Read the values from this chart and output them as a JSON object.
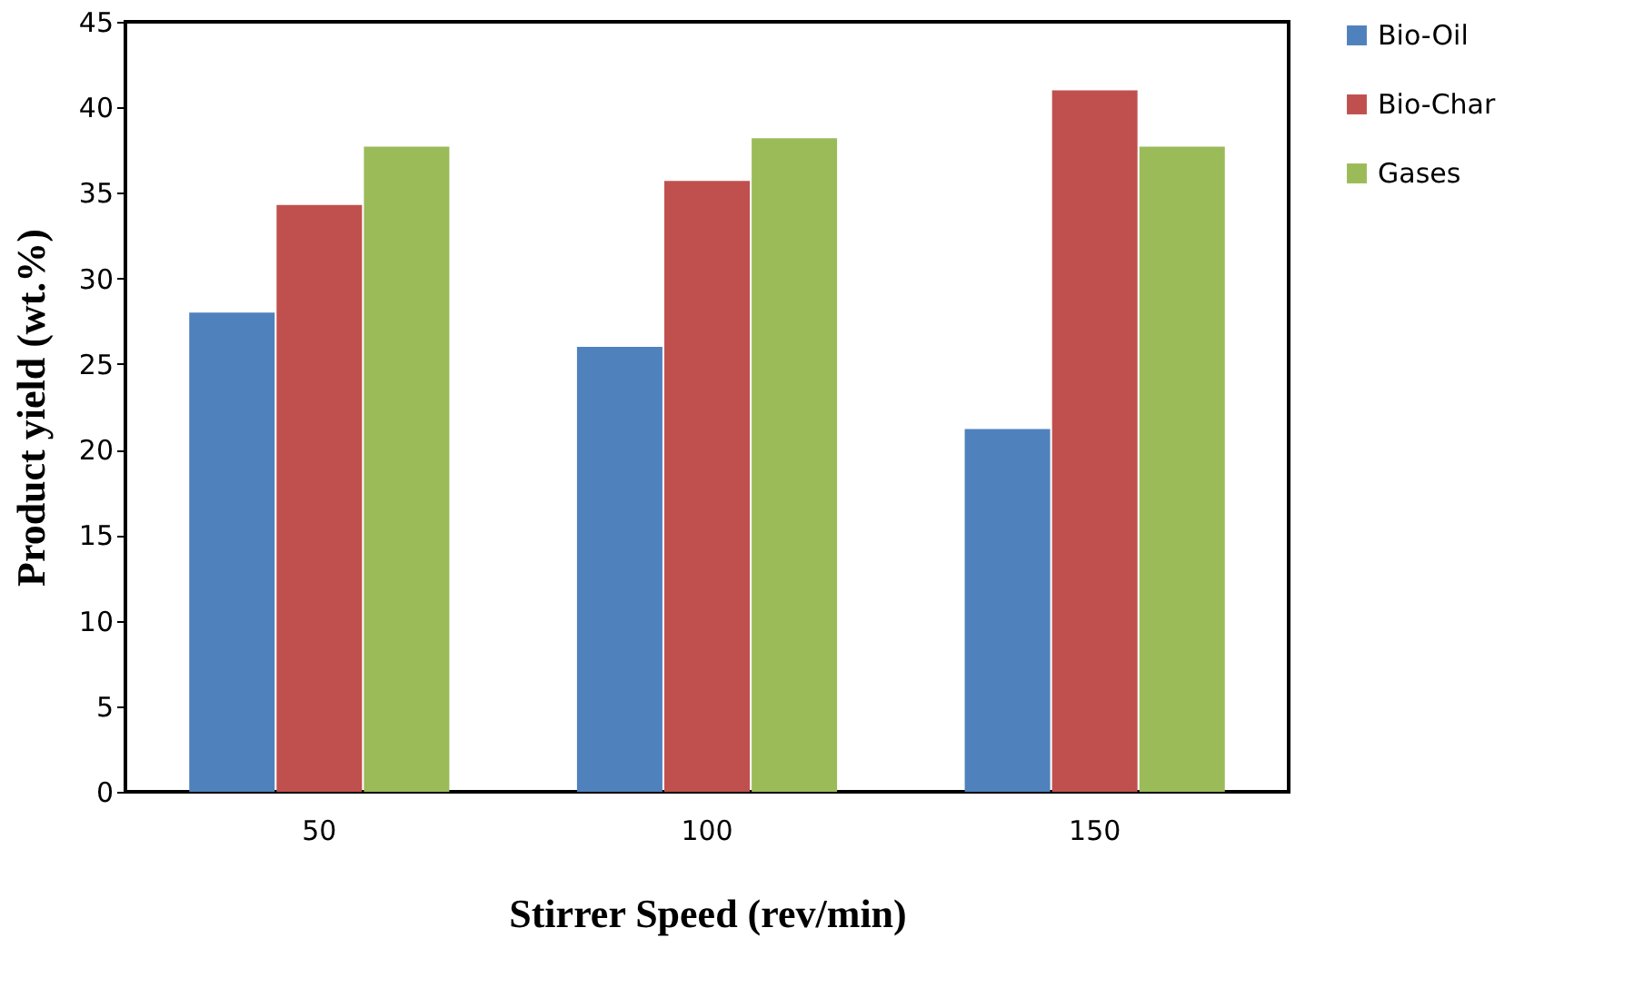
{
  "chart_data": {
    "type": "bar",
    "xlabel": "Stirrer Speed (rev/min)",
    "ylabel": "Product yield (wt.%)",
    "categories": [
      "50",
      "100",
      "150"
    ],
    "series": [
      {
        "name": "Bio-Oil",
        "color": "#4f81bd",
        "values": [
          28,
          26,
          21.2
        ]
      },
      {
        "name": "Bio-Char",
        "color": "#c0504d",
        "values": [
          34.3,
          35.7,
          41
        ]
      },
      {
        "name": "Gases",
        "color": "#9bbb59",
        "values": [
          37.7,
          38.2,
          37.7
        ]
      }
    ],
    "ylim": [
      0,
      45
    ],
    "yticks": [
      0,
      5,
      10,
      15,
      20,
      25,
      30,
      35,
      40,
      45
    ],
    "grid": false,
    "legend": "right"
  }
}
